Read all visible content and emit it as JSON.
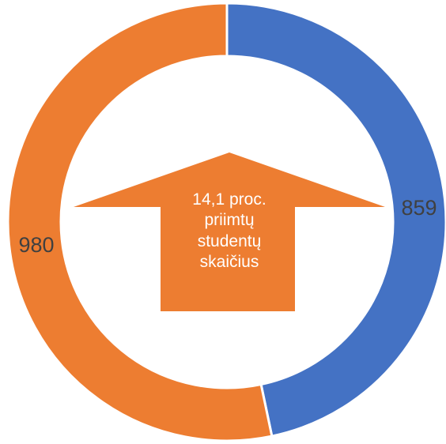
{
  "chart_data": {
    "type": "pie",
    "donut": true,
    "categories": [
      "",
      ""
    ],
    "values": [
      859,
      980
    ],
    "colors": [
      "#4472C4",
      "#ED7D31"
    ],
    "data_labels": [
      "859",
      "980"
    ],
    "title": "",
    "legend": "none"
  },
  "annotation": {
    "lines": [
      "14,1 proc.",
      "priimtų",
      "studentų",
      "skaičius"
    ],
    "arrow_color": "#ED7D31",
    "text_color": "#FFFFFF"
  }
}
